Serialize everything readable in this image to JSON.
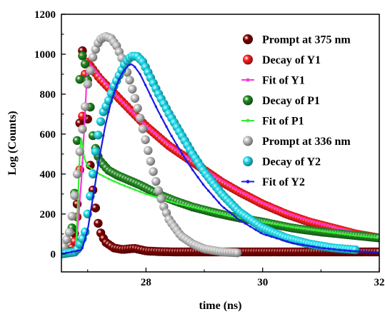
{
  "chart_data": {
    "type": "scatter",
    "xlabel": "time (ns)",
    "ylabel": "Log (Counts)",
    "xlim": [
      26.55,
      32
    ],
    "ylim": [
      -90,
      1200
    ],
    "x_ticks": [
      28,
      30,
      32
    ],
    "x_tick_labels": [
      "28",
      "30",
      "32"
    ],
    "y_ticks": [
      0,
      200,
      400,
      600,
      800,
      1000,
      1200
    ],
    "y_tick_labels": [
      "0",
      "200",
      "400",
      "600",
      "800",
      "1000",
      "1200"
    ],
    "grid": false,
    "legend_position": "top-right",
    "series": [
      {
        "name": "Prompt at 375 nm",
        "kind": "points",
        "color": "#800000",
        "x": [
          26.55,
          26.65,
          26.75,
          26.82,
          26.86,
          26.9,
          26.94,
          26.98,
          27.02,
          27.06,
          27.1,
          27.14,
          27.2,
          27.3,
          27.45,
          27.6,
          27.8,
          28.0,
          28.2,
          28.5,
          28.8,
          29.2,
          29.6,
          30.0,
          30.5,
          31.0,
          31.5,
          32.0
        ],
        "y": [
          0,
          5,
          20,
          250,
          600,
          1040,
          950,
          800,
          550,
          380,
          300,
          220,
          120,
          60,
          30,
          22,
          28,
          15,
          12,
          10,
          10,
          10,
          10,
          10,
          10,
          10,
          10,
          10
        ]
      },
      {
        "name": "Decay of Y1",
        "kind": "points",
        "color": "#ff1f1f",
        "x": [
          26.55,
          26.7,
          26.8,
          26.88,
          26.94,
          27.0,
          27.1,
          27.2,
          27.3,
          27.4,
          27.5,
          27.6,
          27.7,
          27.8,
          27.9,
          28.0,
          28.2,
          28.4,
          28.6,
          28.8,
          29.0,
          29.3,
          29.6,
          30.0,
          30.4,
          30.8,
          31.2,
          31.6,
          32.0
        ],
        "y": [
          0,
          10,
          80,
          500,
          880,
          960,
          920,
          880,
          850,
          820,
          790,
          760,
          730,
          700,
          670,
          640,
          590,
          540,
          500,
          460,
          420,
          360,
          310,
          250,
          200,
          160,
          130,
          100,
          80
        ]
      },
      {
        "name": "Fit of Y1",
        "kind": "line",
        "color": "#ff33dd",
        "x": [
          26.55,
          26.8,
          26.9,
          27.0,
          27.1,
          27.3,
          27.5,
          27.8,
          28.0,
          28.4,
          28.8,
          29.2,
          29.6,
          30.0,
          30.5,
          31.0,
          31.5,
          32.0
        ],
        "y": [
          0,
          20,
          400,
          960,
          930,
          860,
          790,
          700,
          640,
          545,
          465,
          385,
          315,
          255,
          195,
          150,
          115,
          85
        ]
      },
      {
        "name": "Decay of P1",
        "kind": "points",
        "color": "#238b23",
        "x": [
          26.55,
          26.7,
          26.8,
          26.85,
          26.9,
          26.95,
          27.0,
          27.05,
          27.1,
          27.2,
          27.35,
          27.5,
          27.7,
          27.9,
          28.2,
          28.5,
          28.8,
          29.2,
          29.6,
          30.0,
          30.5,
          31.0,
          31.5,
          32.0
        ],
        "y": [
          0,
          15,
          400,
          820,
          1000,
          960,
          870,
          720,
          560,
          470,
          420,
          395,
          370,
          345,
          300,
          265,
          235,
          205,
          180,
          160,
          130,
          110,
          95,
          80
        ]
      },
      {
        "name": "Fit of P1",
        "kind": "line",
        "color": "#33ee33",
        "x": [
          26.55,
          26.8,
          26.88,
          26.94,
          27.0,
          27.1,
          27.2,
          27.4,
          27.6,
          28.0,
          28.5,
          29.0,
          29.5,
          30.0,
          30.5,
          31.0,
          31.5,
          32.0
        ],
        "y": [
          0,
          30,
          600,
          480,
          440,
          420,
          400,
          370,
          345,
          300,
          255,
          220,
          185,
          160,
          135,
          115,
          95,
          80
        ]
      },
      {
        "name": "Prompt at 336 nm",
        "kind": "points",
        "color": "#c8c8c8",
        "x": [
          26.55,
          26.7,
          26.8,
          26.9,
          27.0,
          27.1,
          27.2,
          27.3,
          27.4,
          27.5,
          27.6,
          27.7,
          27.8,
          27.9,
          28.0,
          28.1,
          28.2,
          28.3,
          28.4,
          28.6,
          28.8,
          29.0,
          29.3,
          29.6
        ],
        "y": [
          0,
          120,
          350,
          600,
          850,
          1000,
          1070,
          1090,
          1080,
          1040,
          970,
          890,
          790,
          680,
          560,
          440,
          330,
          240,
          170,
          90,
          50,
          25,
          10,
          5
        ]
      },
      {
        "name": "Decay of Y2",
        "kind": "points",
        "color": "#22e0f0",
        "x": [
          26.55,
          26.8,
          26.95,
          27.05,
          27.15,
          27.25,
          27.35,
          27.45,
          27.55,
          27.65,
          27.75,
          27.85,
          27.95,
          28.05,
          28.2,
          28.4,
          28.6,
          28.8,
          29.0,
          29.3,
          29.6,
          30.0,
          30.4,
          30.8,
          31.2,
          31.6
        ],
        "y": [
          0,
          10,
          100,
          300,
          550,
          700,
          760,
          840,
          900,
          960,
          990,
          990,
          960,
          900,
          810,
          700,
          600,
          500,
          410,
          300,
          210,
          130,
          80,
          50,
          30,
          20
        ]
      },
      {
        "name": "Fit of Y2",
        "kind": "line",
        "color": "#1a1ae6",
        "x": [
          26.55,
          26.9,
          27.0,
          27.1,
          27.2,
          27.3,
          27.4,
          27.5,
          27.6,
          27.7,
          27.75,
          27.8,
          27.9,
          28.0,
          28.2,
          28.4,
          28.6,
          28.8,
          29.0,
          29.3,
          29.6,
          30.0,
          30.5,
          31.0,
          31.5,
          32.0
        ],
        "y": [
          0,
          20,
          120,
          300,
          480,
          640,
          760,
          850,
          910,
          945,
          950,
          940,
          900,
          840,
          720,
          610,
          510,
          420,
          340,
          240,
          170,
          100,
          55,
          30,
          15,
          8
        ]
      }
    ]
  }
}
